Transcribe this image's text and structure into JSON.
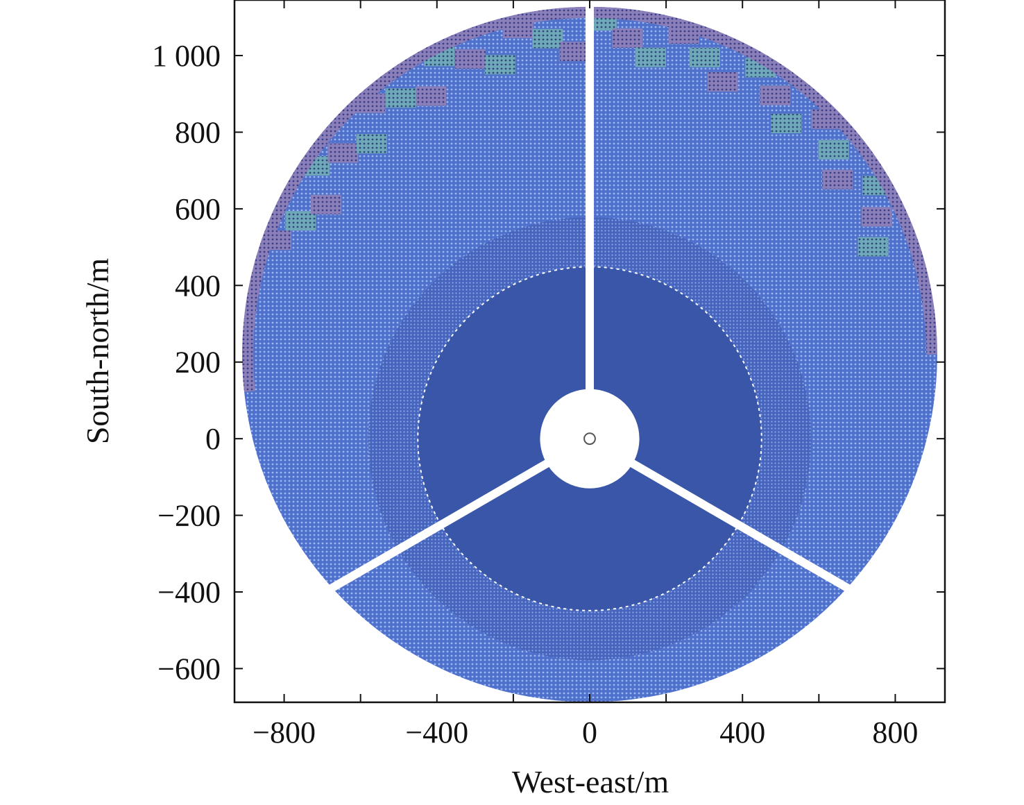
{
  "chart_data": {
    "type": "scatter",
    "title": "",
    "xlabel": "West-east/m",
    "ylabel": "South-north/m",
    "xlim": [
      -930,
      930
    ],
    "ylim": [
      -688,
      1145
    ],
    "x_ticks": [
      -800,
      -600,
      -400,
      -200,
      0,
      200,
      400,
      600,
      800
    ],
    "x_tick_labels": [
      "−800",
      "",
      "−400",
      "",
      "0",
      "",
      "400",
      "",
      "800"
    ],
    "y_ticks": [
      -600,
      -400,
      -200,
      0,
      200,
      400,
      600,
      800,
      1000
    ],
    "y_tick_labels": [
      "−600",
      "−400",
      "−200",
      "0",
      "200",
      "400",
      "600",
      "800",
      "1 000"
    ],
    "grid": false,
    "tower": {
      "x": 0,
      "y": 0,
      "r": 18
    },
    "field_boundary": {
      "center": [
        0,
        220
      ],
      "radius": 910
    },
    "zones": [
      {
        "name": "outer-field",
        "inner_radius": 580,
        "color": "#5679d2"
      },
      {
        "name": "middle-ring",
        "inner_radius": 450,
        "outer_radius": 580,
        "color": "#4b6cc4"
      },
      {
        "name": "dense-core",
        "inner_radius": 130,
        "outer_radius": 450,
        "color": "#3a56a8"
      }
    ],
    "outer_band_colors": [
      "#8a7fb8",
      "#6fa9b9"
    ],
    "corridors_deg": [
      90,
      210,
      330
    ],
    "corridor_lengths": [
      1140,
      790,
      790
    ],
    "center_hole_radius": 130,
    "colors": {
      "core": "#3a56a8",
      "field": "#5679d2",
      "dot": "#8fb0f0",
      "band": "#8a7fb8",
      "teal": "#6fa9b9"
    }
  }
}
